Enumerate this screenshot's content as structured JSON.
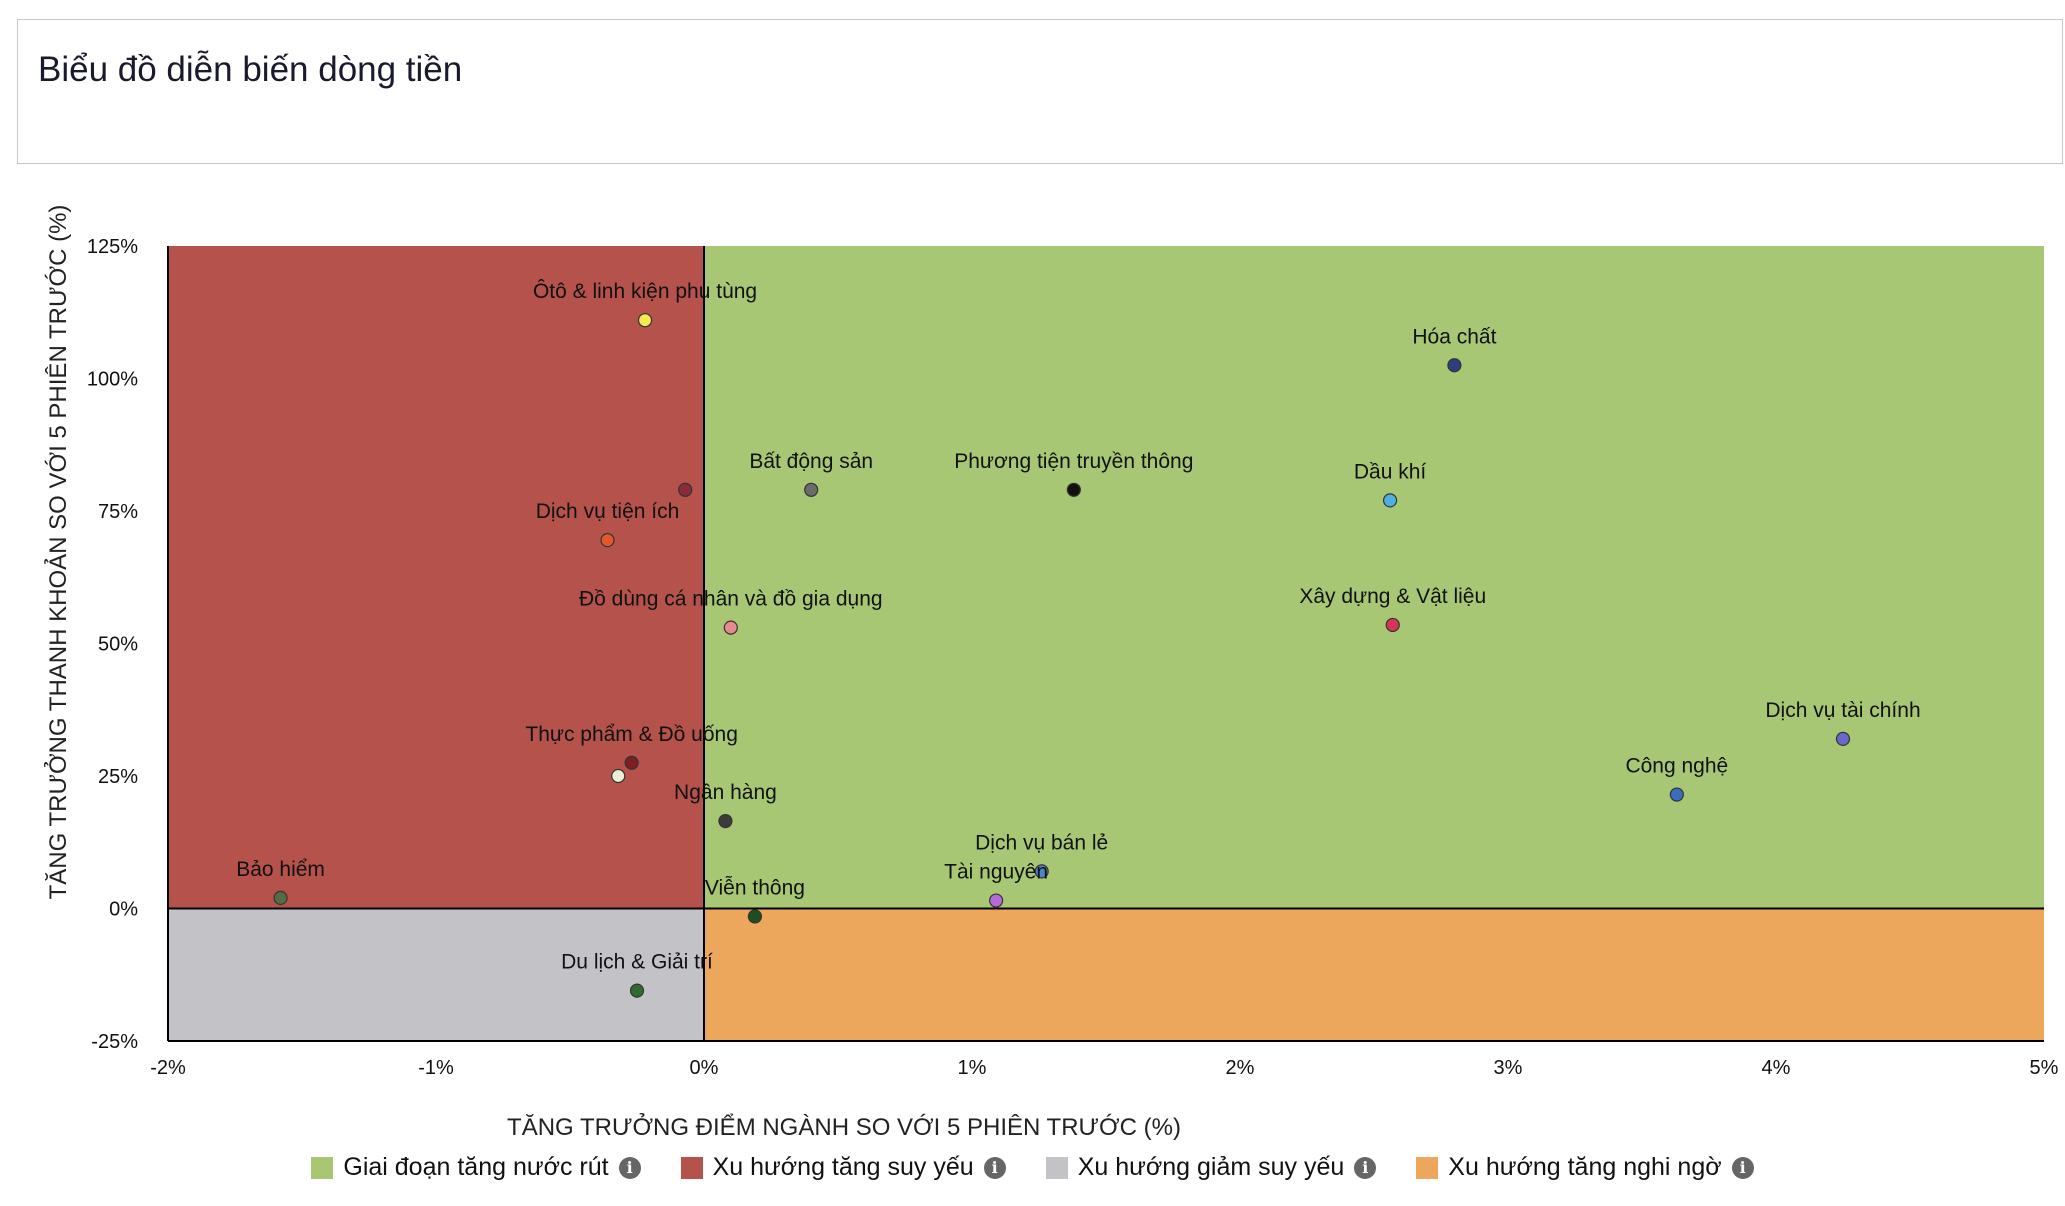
{
  "page": {
    "title": "Biểu đồ diễn biến dòng tiền"
  },
  "legend": [
    {
      "label": "Giai đoạn tăng nước rút",
      "color": "#a8c774",
      "icon": "info-icon"
    },
    {
      "label": "Xu hướng tăng suy yếu",
      "color": "#b5524c",
      "icon": "info-icon"
    },
    {
      "label": "Xu hướng giảm suy yếu",
      "color": "#c3c3c7",
      "icon": "info-icon"
    },
    {
      "label": "Xu hướng tăng nghi ngờ",
      "color": "#eda75c",
      "icon": "info-icon"
    }
  ],
  "chart_data": {
    "type": "scatter",
    "title": "",
    "xlabel": "TĂNG TRƯỞNG ĐIỂM NGÀNH SO VỚI 5 PHIÊN TRƯỚC (%)",
    "ylabel": "TĂNG TRƯỞNG THANH KHOẢN SO VỚI 5 PHIÊN TRƯỚC (%)",
    "xlim": [
      -2,
      5
    ],
    "ylim": [
      -25,
      125
    ],
    "xticks": [
      -2,
      -1,
      0,
      1,
      2,
      3,
      4,
      5
    ],
    "yticks": [
      -25,
      0,
      25,
      50,
      75,
      100,
      125
    ],
    "xtick_labels": [
      "-2%",
      "-1%",
      "0%",
      "1%",
      "2%",
      "3%",
      "4%",
      "5%"
    ],
    "ytick_labels": [
      "-25%",
      "0%",
      "25%",
      "50%",
      "75%",
      "100%",
      "125%"
    ],
    "grid": false,
    "legend_position": "bottom",
    "quadrants": [
      {
        "name": "Giai đoạn tăng nước rút",
        "x": [
          0,
          5
        ],
        "y": [
          0,
          125
        ],
        "color": "#a8c774"
      },
      {
        "name": "Xu hướng tăng suy yếu",
        "x": [
          -2,
          0
        ],
        "y": [
          0,
          125
        ],
        "color": "#b5524c"
      },
      {
        "name": "Xu hướng giảm suy yếu",
        "x": [
          -2,
          0
        ],
        "y": [
          -25,
          0
        ],
        "color": "#c3c3c7"
      },
      {
        "name": "Xu hướng tăng nghi ngờ",
        "x": [
          0,
          5
        ],
        "y": [
          -25,
          0
        ],
        "color": "#eda75c"
      }
    ],
    "points": [
      {
        "label": "Ôtô & linh kiện phụ tùng",
        "x": -0.22,
        "y": 111,
        "color": "#f2ea4e"
      },
      {
        "label": "Hóa chất",
        "x": 2.8,
        "y": 102.5,
        "color": "#2e3f7e"
      },
      {
        "label": "Bất động sản",
        "x": 0.4,
        "y": 79,
        "color": "#6b6b6b"
      },
      {
        "label": "Phương tiện truyền thông",
        "x": 1.38,
        "y": 79,
        "color": "#111111"
      },
      {
        "label": "",
        "x": -0.07,
        "y": 79,
        "color": "#8a2a3a"
      },
      {
        "label": "Dầu khí",
        "x": 2.56,
        "y": 77,
        "color": "#4fb0e0"
      },
      {
        "label": "Dịch vụ tiện ích",
        "x": -0.36,
        "y": 69.5,
        "color": "#e2582b"
      },
      {
        "label": "Đồ dùng cá nhân và đồ gia dụng",
        "x": 0.1,
        "y": 53,
        "color": "#e8898f"
      },
      {
        "label": "Xây dựng & Vật liệu",
        "x": 2.57,
        "y": 53.5,
        "color": "#d7345a"
      },
      {
        "label": "Dịch vụ tài chính",
        "x": 4.25,
        "y": 32,
        "color": "#6a68c8"
      },
      {
        "label": "Thực phẩm & Đồ uống",
        "x": -0.27,
        "y": 27.5,
        "color": "#7d1e22"
      },
      {
        "label": "",
        "x": -0.32,
        "y": 25,
        "color": "#e8f0d8"
      },
      {
        "label": "Công nghệ",
        "x": 3.63,
        "y": 21.5,
        "color": "#3a6dbf"
      },
      {
        "label": "Ngân hàng",
        "x": 0.08,
        "y": 16.5,
        "color": "#3b3b3b"
      },
      {
        "label": "Dịch vụ bán lẻ",
        "x": 1.26,
        "y": 7,
        "color": "#4f86c6"
      },
      {
        "label": "Tài nguyên",
        "x": 1.09,
        "y": 1.5,
        "color": "#b769d9"
      },
      {
        "label": "Bảo hiểm",
        "x": -1.58,
        "y": 2,
        "color": "#556b48"
      },
      {
        "label": "Viễn thông",
        "x": 0.19,
        "y": -1.5,
        "color": "#1f4d1f"
      },
      {
        "label": "Du lịch & Giải trí",
        "x": -0.25,
        "y": -15.5,
        "color": "#2f6b2f"
      }
    ]
  }
}
